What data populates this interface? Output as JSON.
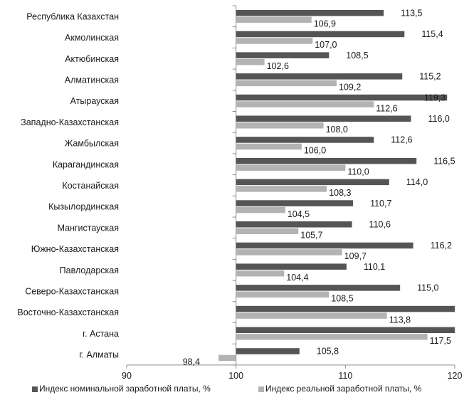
{
  "chart_data": {
    "type": "bar",
    "orientation": "horizontal",
    "title": "",
    "xlabel": "",
    "ylabel": "",
    "xlim": [
      90,
      120
    ],
    "xticks": [
      "90",
      "100",
      "110",
      "120"
    ],
    "grid": false,
    "legend_position": "bottom",
    "categories": [
      "Республика Казахстан",
      "Акмолинская",
      "Актюбинская",
      "Алматинская",
      "Атырауская",
      "Западно-Казахстанская",
      "Жамбылская",
      "Карагандинская",
      "Костанайская",
      "Кызылординская",
      "Мангистауская",
      "Южно-Казахстанская",
      "Павлодарская",
      "Северо-Казахстанская",
      "Восточно-Казахстанская",
      "г. Астана",
      "г. Алматы"
    ],
    "series": [
      {
        "name": "Индекс номинальной заработной платы, %",
        "color": "#555555",
        "values": [
          113.5,
          115.4,
          108.5,
          115.2,
          119.3,
          116.0,
          112.6,
          116.5,
          114.0,
          110.7,
          110.6,
          116.2,
          110.1,
          115.0,
          120.0,
          120.0,
          105.8
        ],
        "labels": [
          "113,5",
          "115,4",
          "108,5",
          "115,2",
          "119,3",
          "116,0",
          "112,6",
          "116,5",
          "114,0",
          "110,7",
          "110,6",
          "116,2",
          "110,1",
          "115,0",
          "",
          "",
          "105,8"
        ]
      },
      {
        "name": "Индекс реальной заработной платы, %",
        "color": "#b3b3b3",
        "values": [
          106.9,
          107.0,
          102.6,
          109.2,
          112.6,
          108.0,
          106.0,
          110.0,
          108.3,
          104.5,
          105.7,
          109.7,
          104.4,
          108.5,
          113.8,
          117.5,
          98.4
        ],
        "labels": [
          "106,9",
          "107,0",
          "102,6",
          "109,2",
          "112,6",
          "108,0",
          "106,0",
          "110,0",
          "108,3",
          "104,5",
          "105,7",
          "109,7",
          "104,4",
          "108,5",
          "113,8",
          "117,5",
          "98,4"
        ]
      }
    ]
  }
}
